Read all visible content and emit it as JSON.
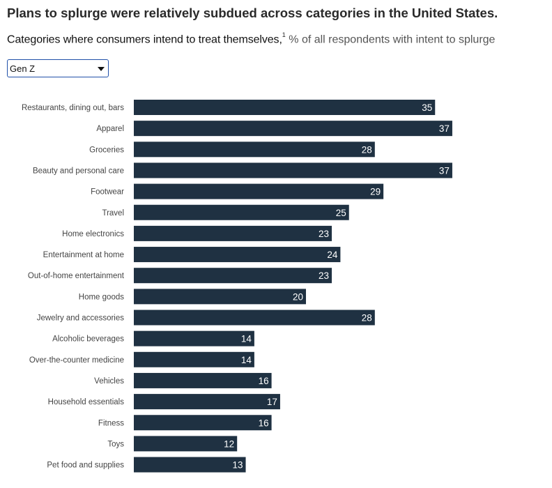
{
  "header": {
    "title": "Plans to splurge were relatively subdued across categories in the United States.",
    "subtitle_main": "Categories where consumers intend to treat themselves,",
    "subtitle_footnote": "1",
    "subtitle_unit": "% of all respondents with intent to splurge"
  },
  "filter": {
    "selected": "Gen Z",
    "caret_icon": "chevron-down-icon"
  },
  "colors": {
    "bar": "#1f3142",
    "bar_label": "#ffffff",
    "category_label": "#444444",
    "dropdown_border": "#1f4fa8"
  },
  "chart_data": {
    "type": "bar",
    "orientation": "horizontal",
    "categories": [
      "Restaurants, dining out, bars",
      "Apparel",
      "Groceries",
      "Beauty and personal care",
      "Footwear",
      "Travel",
      "Home electronics",
      "Entertainment at home",
      "Out-of-home entertainment",
      "Home goods",
      "Jewelry and accessories",
      "Alcoholic beverages",
      "Over-the-counter medicine",
      "Vehicles",
      "Household essentials",
      "Fitness",
      "Toys",
      "Pet food and supplies"
    ],
    "values": [
      35,
      37,
      28,
      37,
      29,
      25,
      23,
      24,
      23,
      20,
      28,
      14,
      14,
      16,
      17,
      16,
      12,
      13
    ],
    "xlim": [
      0,
      40
    ],
    "data_labels": true,
    "grid": false,
    "legend": "none"
  }
}
